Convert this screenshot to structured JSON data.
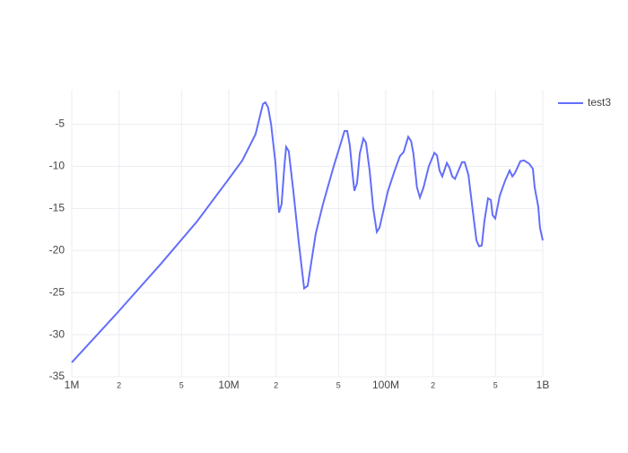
{
  "chart_data": {
    "type": "line",
    "x": [
      1000000,
      1930000,
      3730000,
      6310000,
      10000000,
      12200000,
      14800000,
      16500000,
      17100000,
      17800000,
      18600000,
      19800000,
      20900000,
      21700000,
      22600000,
      23200000,
      24100000,
      25800000,
      27900000,
      30200000,
      31800000,
      35800000,
      39800000,
      46600000,
      51800000,
      54600000,
      56800000,
      59000000,
      61500000,
      63100000,
      65600000,
      68300000,
      72000000,
      74800000,
      78900000,
      83200000,
      87700000,
      91200000,
      103000000,
      114000000,
      123000000,
      130000000,
      139000000,
      145000000,
      150000000,
      158000000,
      165000000,
      174000000,
      188000000,
      204000000,
      212000000,
      220000000,
      229000000,
      245000000,
      255000000,
      265000000,
      276000000,
      306000000,
      318000000,
      336000000,
      354000000,
      378000000,
      393000000,
      409000000,
      425000000,
      448000000,
      467000000,
      479000000,
      498000000,
      532000000,
      576000000,
      615000000,
      640000000,
      665000000,
      720000000,
      759000000,
      820000000,
      865000000,
      888000000,
      936000000,
      960000000,
      1000000000
    ],
    "series": [
      {
        "name": "test3",
        "color": "#636efa",
        "values": [
          -33.3,
          -27.5,
          -21.5,
          -16.5,
          -11.5,
          -9.3,
          -6.2,
          -2.6,
          -2.4,
          -3,
          -5,
          -9.5,
          -15.5,
          -14.5,
          -10,
          -7.7,
          -8.2,
          -13,
          -19,
          -24.5,
          -24.2,
          -18,
          -14.5,
          -10,
          -7.2,
          -5.8,
          -5.8,
          -7.5,
          -11,
          -12.9,
          -12,
          -8.5,
          -6.7,
          -7.2,
          -10.5,
          -15,
          -17.8,
          -17.3,
          -13,
          -10.5,
          -8.8,
          -8.3,
          -6.5,
          -7,
          -8.5,
          -12.5,
          -13.7,
          -12.5,
          -10,
          -8.4,
          -8.7,
          -10.5,
          -11.2,
          -9.6,
          -10.2,
          -11.2,
          -11.5,
          -9.5,
          -9.5,
          -11,
          -14.5,
          -18.8,
          -19.5,
          -19.4,
          -16.5,
          -13.8,
          -14,
          -15.8,
          -16.2,
          -13.5,
          -11.7,
          -10.5,
          -11.2,
          -10.8,
          -9.4,
          -9.3,
          -9.7,
          -10.3,
          -12.5,
          -14.8,
          -17.3,
          -18.8
        ]
      }
    ],
    "xscale": "log",
    "xlim": [
      1000000,
      1000000000
    ],
    "xticks": [
      {
        "value": 1000000,
        "label": "1M"
      },
      {
        "value": 2000000,
        "label": "2"
      },
      {
        "value": 5000000,
        "label": "5"
      },
      {
        "value": 10000000,
        "label": "10M"
      },
      {
        "value": 20000000,
        "label": "2"
      },
      {
        "value": 50000000,
        "label": "5"
      },
      {
        "value": 100000000,
        "label": "100M"
      },
      {
        "value": 200000000,
        "label": "2"
      },
      {
        "value": 500000000,
        "label": "5"
      },
      {
        "value": 1000000000,
        "label": "1B"
      }
    ],
    "ylim": [
      -35,
      -0.9
    ],
    "yticks": [
      -35,
      -30,
      -25,
      -20,
      -15,
      -10,
      -5
    ],
    "grid": true,
    "legend": "top-right"
  }
}
